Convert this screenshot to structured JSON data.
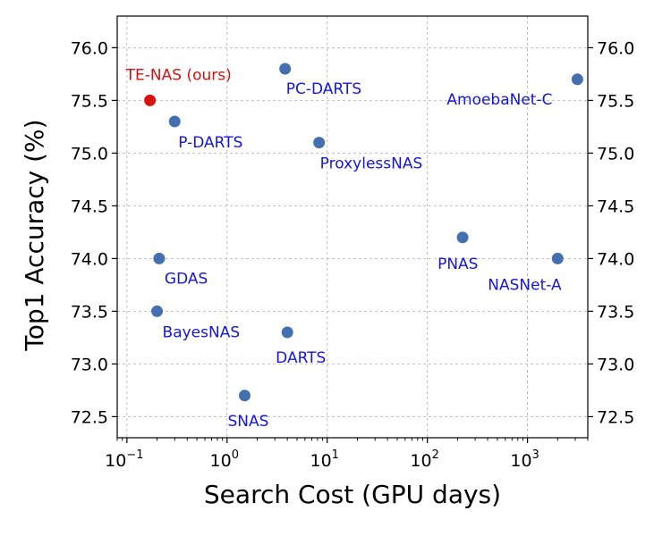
{
  "colors": {
    "point": "#4470b0",
    "highlight_point": "#dd1010",
    "label": "#1515e0",
    "highlight_label": "#d41010",
    "grid": "#b0b0b0",
    "axis": "#000000"
  },
  "chart_data": {
    "type": "scatter",
    "xlabel": "Search Cost (GPU days)",
    "ylabel": "Top1 Accuracy (%)",
    "xscale": "log",
    "xlim": [
      0.08,
      4000
    ],
    "ylim": [
      72.3,
      76.3
    ],
    "grid": true,
    "x_ticks": [
      {
        "value": 0.1,
        "base": "10",
        "exp": "−1"
      },
      {
        "value": 1,
        "base": "10",
        "exp": "0"
      },
      {
        "value": 10,
        "base": "10",
        "exp": "1"
      },
      {
        "value": 100,
        "base": "10",
        "exp": "2"
      },
      {
        "value": 1000,
        "base": "10",
        "exp": "3"
      }
    ],
    "y_ticks": [
      "72.5",
      "73.0",
      "73.5",
      "74.0",
      "74.5",
      "75.0",
      "75.5",
      "76.0"
    ],
    "points": [
      {
        "label": "TE-NAS (ours)",
        "x": 0.17,
        "y": 75.5,
        "highlight": true
      },
      {
        "label": "PC-DARTS",
        "x": 3.8,
        "y": 75.8
      },
      {
        "label": "AmoebaNet-C",
        "x": 3150,
        "y": 75.7
      },
      {
        "label": "P-DARTS",
        "x": 0.3,
        "y": 75.3
      },
      {
        "label": "ProxylessNAS",
        "x": 8.3,
        "y": 75.1
      },
      {
        "label": "PNAS",
        "x": 225,
        "y": 74.2
      },
      {
        "label": "GDAS",
        "x": 0.21,
        "y": 74.0
      },
      {
        "label": "NASNet-A",
        "x": 2000,
        "y": 74.0
      },
      {
        "label": "BayesNAS",
        "x": 0.2,
        "y": 73.5
      },
      {
        "label": "DARTS",
        "x": 4.0,
        "y": 73.3
      },
      {
        "label": "SNAS",
        "x": 1.5,
        "y": 72.7
      }
    ]
  }
}
